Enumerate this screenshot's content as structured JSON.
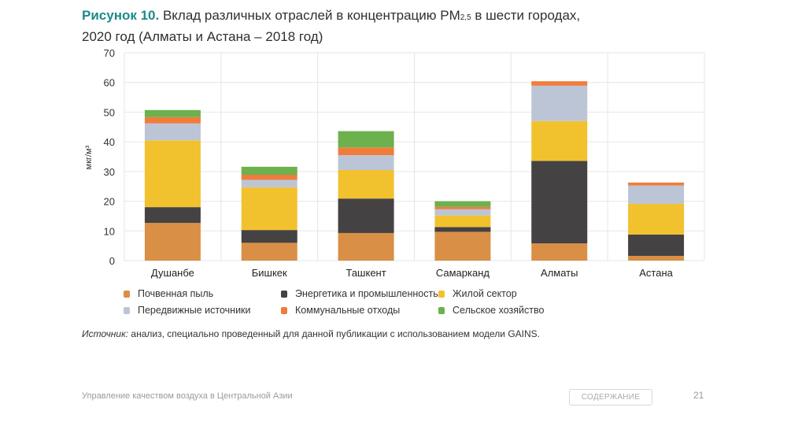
{
  "header": {
    "figure_label": "Рисунок 10.",
    "title_part1": " Вклад различных отраслей в концентрацию PM",
    "title_sub": "2,5",
    "title_part2": " в шести городах,",
    "title_line2": "2020 год (Алматы и Астана – 2018 год)"
  },
  "chart_data": {
    "type": "bar",
    "stacked": true,
    "title": "Вклад различных отраслей в концентрацию PM2,5 в шести городах, 2020 год (Алматы и Астана – 2018 год)",
    "xlabel": "",
    "ylabel": "мкг/м³",
    "ylim": [
      0,
      70
    ],
    "yticks": [
      0,
      10,
      20,
      30,
      40,
      50,
      60,
      70
    ],
    "grid": true,
    "legend_position": "bottom",
    "categories": [
      "Душанбе",
      "Бишкек",
      "Ташкент",
      "Самарканд",
      "Алматы",
      "Астана"
    ],
    "series": [
      {
        "name": "Почвенная пыль",
        "color": "#d98f45",
        "values": [
          12.7,
          6.0,
          9.3,
          9.7,
          5.8,
          1.6
        ]
      },
      {
        "name": "Энергетика и промышленность",
        "color": "#444242",
        "values": [
          5.3,
          4.3,
          11.6,
          1.6,
          27.8,
          7.2
        ]
      },
      {
        "name": "Жилой сектор",
        "color": "#f2c12e",
        "values": [
          22.5,
          14.4,
          9.6,
          3.9,
          13.4,
          10.3
        ]
      },
      {
        "name": "Передвижные источники",
        "color": "#bcc5d6",
        "values": [
          5.7,
          2.5,
          5.0,
          2.1,
          11.9,
          6.2
        ]
      },
      {
        "name": "Коммунальные отходы",
        "color": "#f07c3c",
        "values": [
          2.1,
          1.7,
          2.6,
          0.8,
          1.5,
          1.0
        ]
      },
      {
        "name": "Сельское хозяйство",
        "color": "#6db04e",
        "values": [
          2.4,
          2.7,
          5.5,
          1.9,
          0,
          0
        ]
      }
    ]
  },
  "source": {
    "label": "Источник:",
    "text": " анализ, специально проведенный для данной публикации с использованием модели GAINS."
  },
  "footer": {
    "publication": "Управление качеством воздуха в Центральной Азии",
    "toc_button": "СОДЕРЖАНИЕ",
    "page_number": "21"
  }
}
